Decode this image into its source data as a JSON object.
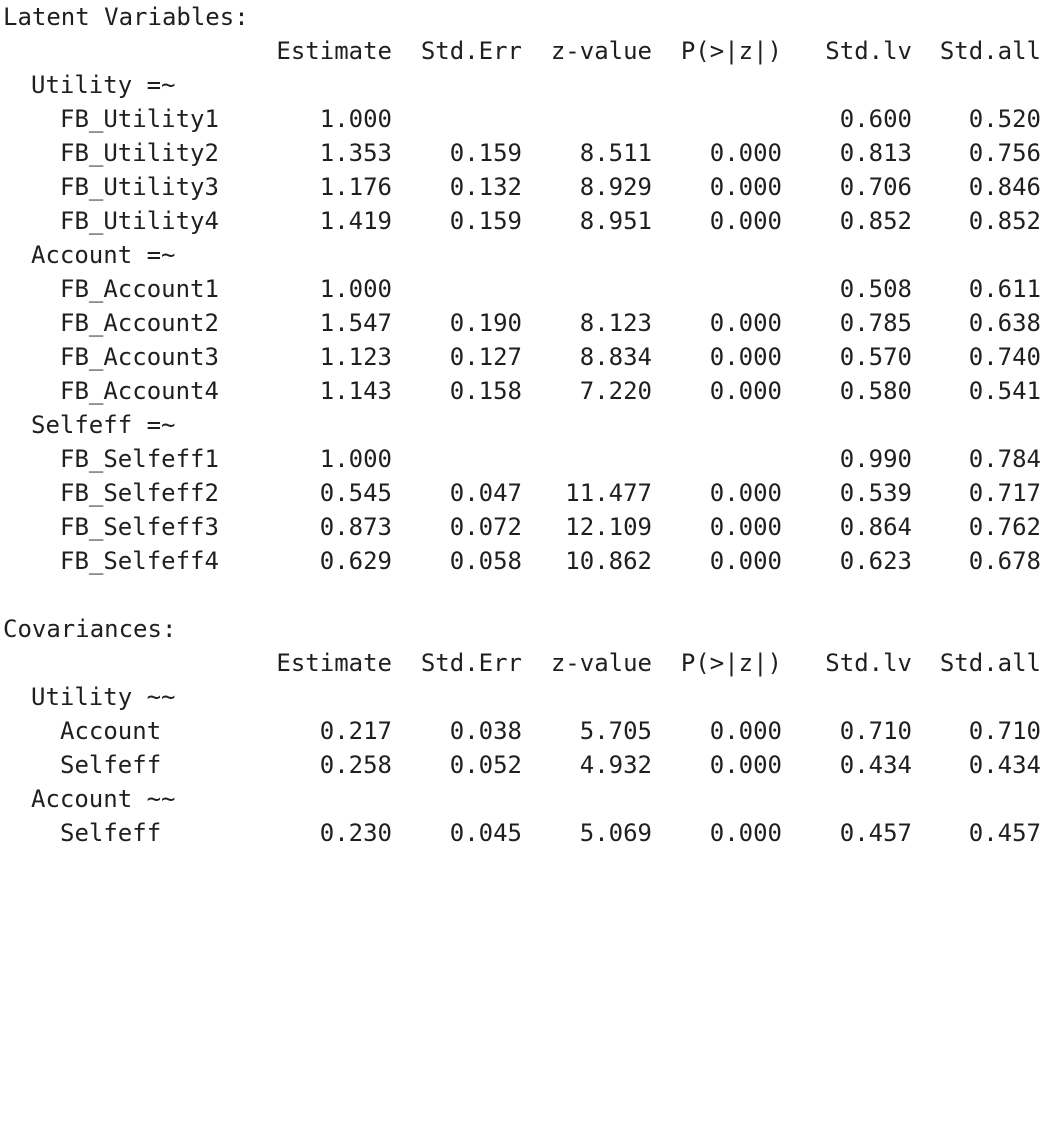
{
  "sections": [
    {
      "title": "Latent Variables:",
      "headers": [
        "Estimate",
        "Std.Err",
        "z-value",
        "P(>|z|)",
        "Std.lv",
        "Std.all"
      ],
      "groups": [
        {
          "label": "Utility =~",
          "rows": [
            {
              "name": "FB_Utility1",
              "values": [
                "1.000",
                "",
                "",
                "",
                "0.600",
                "0.520"
              ]
            },
            {
              "name": "FB_Utility2",
              "values": [
                "1.353",
                "0.159",
                "8.511",
                "0.000",
                "0.813",
                "0.756"
              ]
            },
            {
              "name": "FB_Utility3",
              "values": [
                "1.176",
                "0.132",
                "8.929",
                "0.000",
                "0.706",
                "0.846"
              ]
            },
            {
              "name": "FB_Utility4",
              "values": [
                "1.419",
                "0.159",
                "8.951",
                "0.000",
                "0.852",
                "0.852"
              ]
            }
          ]
        },
        {
          "label": "Account =~",
          "rows": [
            {
              "name": "FB_Account1",
              "values": [
                "1.000",
                "",
                "",
                "",
                "0.508",
                "0.611"
              ]
            },
            {
              "name": "FB_Account2",
              "values": [
                "1.547",
                "0.190",
                "8.123",
                "0.000",
                "0.785",
                "0.638"
              ]
            },
            {
              "name": "FB_Account3",
              "values": [
                "1.123",
                "0.127",
                "8.834",
                "0.000",
                "0.570",
                "0.740"
              ]
            },
            {
              "name": "FB_Account4",
              "values": [
                "1.143",
                "0.158",
                "7.220",
                "0.000",
                "0.580",
                "0.541"
              ]
            }
          ]
        },
        {
          "label": "Selfeff =~",
          "rows": [
            {
              "name": "FB_Selfeff1",
              "values": [
                "1.000",
                "",
                "",
                "",
                "0.990",
                "0.784"
              ]
            },
            {
              "name": "FB_Selfeff2",
              "values": [
                "0.545",
                "0.047",
                "11.477",
                "0.000",
                "0.539",
                "0.717"
              ]
            },
            {
              "name": "FB_Selfeff3",
              "values": [
                "0.873",
                "0.072",
                "12.109",
                "0.000",
                "0.864",
                "0.762"
              ]
            },
            {
              "name": "FB_Selfeff4",
              "values": [
                "0.629",
                "0.058",
                "10.862",
                "0.000",
                "0.623",
                "0.678"
              ]
            }
          ]
        }
      ]
    },
    {
      "title": "Covariances:",
      "headers": [
        "Estimate",
        "Std.Err",
        "z-value",
        "P(>|z|)",
        "Std.lv",
        "Std.all"
      ],
      "groups": [
        {
          "label": "Utility ~~",
          "rows": [
            {
              "name": "Account",
              "values": [
                "0.217",
                "0.038",
                "5.705",
                "0.000",
                "0.710",
                "0.710"
              ]
            },
            {
              "name": "Selfeff",
              "values": [
                "0.258",
                "0.052",
                "4.932",
                "0.000",
                "0.434",
                "0.434"
              ]
            }
          ]
        },
        {
          "label": "Account ~~",
          "rows": [
            {
              "name": "Selfeff",
              "values": [
                "0.230",
                "0.045",
                "5.069",
                "0.000",
                "0.457",
                "0.457"
              ]
            }
          ]
        }
      ]
    }
  ]
}
